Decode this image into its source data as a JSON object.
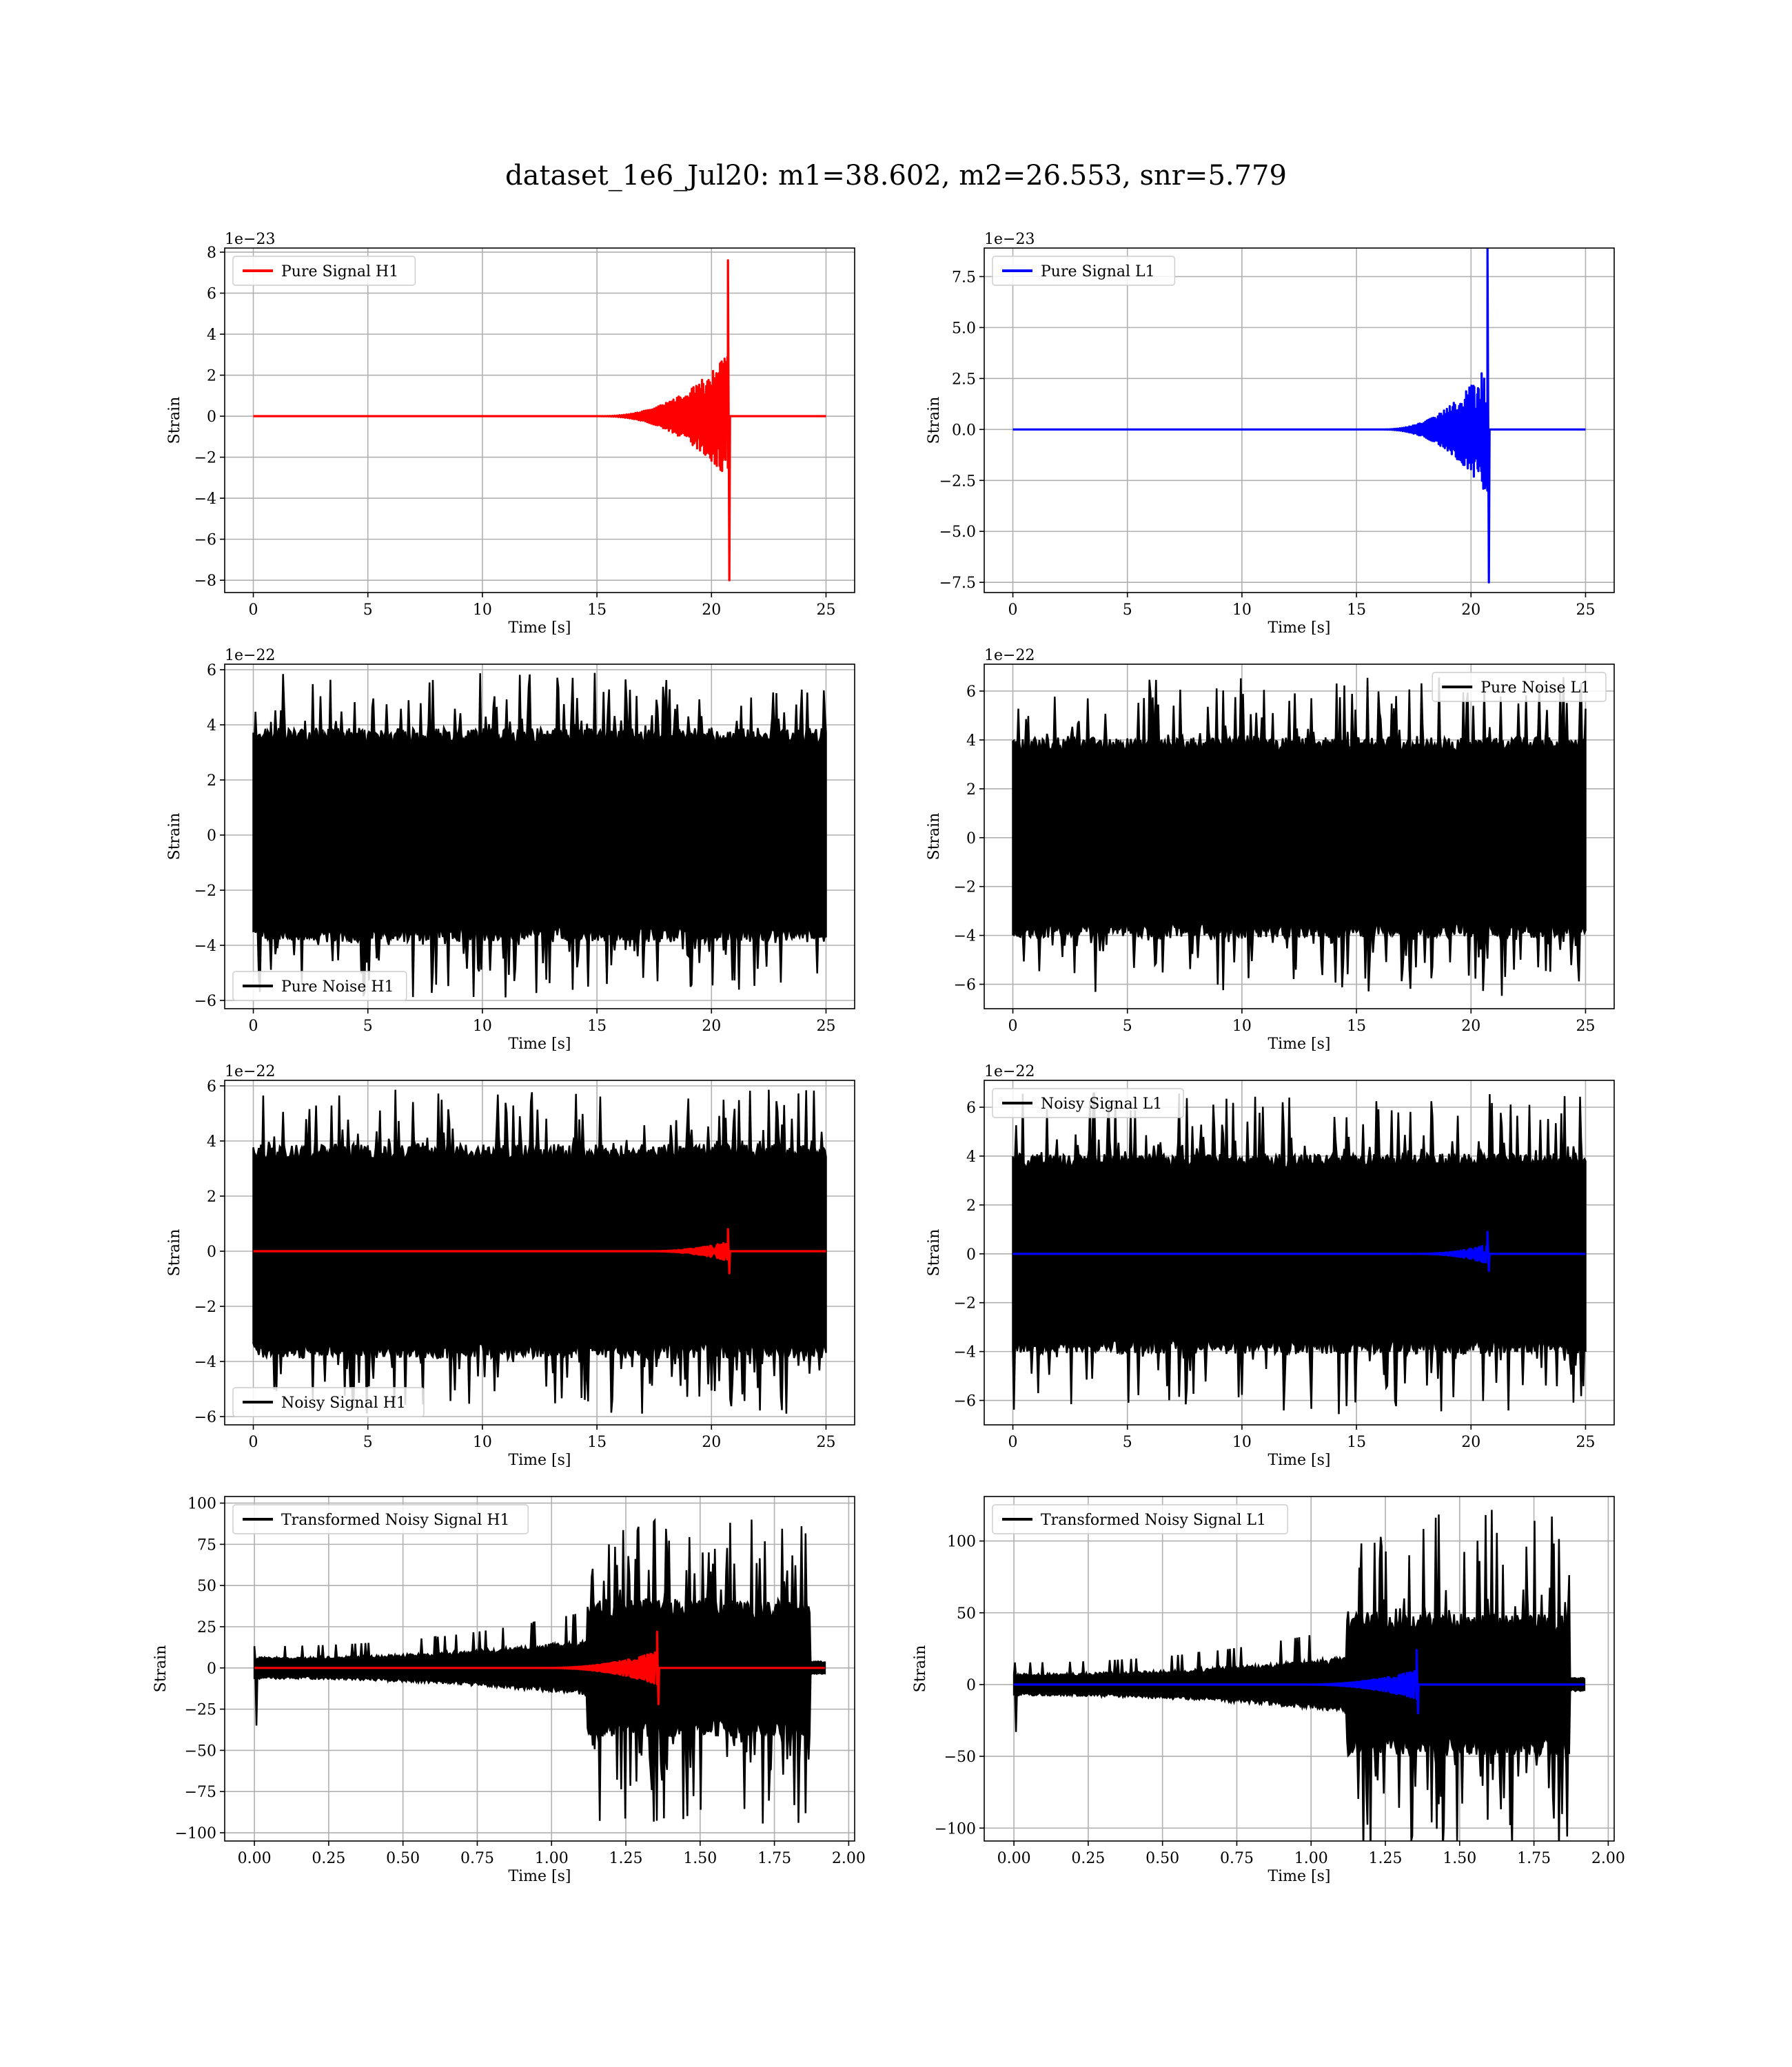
{
  "figure": {
    "suptitle": "dataset_1e6_Jul20: m1=38.602, m2=26.553, snr=5.779"
  },
  "chart_data": [
    {
      "id": "pure-signal-h1",
      "type": "line",
      "xlabel": "Time [s]",
      "ylabel": "Strain",
      "offset_text": "1e−23",
      "xlim": [
        -1.25,
        26.25
      ],
      "ylim": [
        -8.6,
        8.2
      ],
      "xticks": [
        0,
        5,
        10,
        15,
        20,
        25
      ],
      "xtick_labels": [
        "0",
        "5",
        "10",
        "15",
        "20",
        "25"
      ],
      "yticks": [
        -8,
        -6,
        -4,
        -2,
        0,
        2,
        4,
        6,
        8
      ],
      "ytick_labels": [
        "−8",
        "−6",
        "−4",
        "−2",
        "0",
        "2",
        "4",
        "6",
        "8"
      ],
      "grid": true,
      "legend_loc": "upper-left",
      "series": [
        {
          "name": "Pure Signal H1",
          "color": "#ff0000",
          "kind": "chirp",
          "t_start": 0,
          "t_end": 25,
          "t_merge": 20.72,
          "amp_pos": 7.6,
          "amp_neg": -8.0,
          "env_peak": 3.0,
          "onset": 15.0
        }
      ]
    },
    {
      "id": "pure-signal-l1",
      "type": "line",
      "xlabel": "Time [s]",
      "ylabel": "Strain",
      "offset_text": "1e−23",
      "xlim": [
        -1.25,
        26.25
      ],
      "ylim": [
        -8.0,
        8.9
      ],
      "xticks": [
        0,
        5,
        10,
        15,
        20,
        25
      ],
      "xtick_labels": [
        "0",
        "5",
        "10",
        "15",
        "20",
        "25"
      ],
      "yticks": [
        -7.5,
        -5.0,
        -2.5,
        0.0,
        2.5,
        5.0,
        7.5
      ],
      "ytick_labels": [
        "−7.5",
        "−5.0",
        "−2.5",
        "0.0",
        "2.5",
        "5.0",
        "7.5"
      ],
      "grid": true,
      "legend_loc": "upper-left",
      "series": [
        {
          "name": "Pure Signal L1",
          "color": "#0000ff",
          "kind": "chirp",
          "t_start": 0,
          "t_end": 25,
          "t_merge": 20.72,
          "amp_pos": 8.9,
          "amp_neg": -7.5,
          "env_peak": 3.2,
          "onset": 16.0
        }
      ]
    },
    {
      "id": "pure-noise-h1",
      "type": "line",
      "xlabel": "Time [s]",
      "ylabel": "Strain",
      "offset_text": "1e−22",
      "xlim": [
        -1.25,
        26.25
      ],
      "ylim": [
        -6.3,
        6.2
      ],
      "xticks": [
        0,
        5,
        10,
        15,
        20,
        25
      ],
      "xtick_labels": [
        "0",
        "5",
        "10",
        "15",
        "20",
        "25"
      ],
      "yticks": [
        -6,
        -4,
        -2,
        0,
        2,
        4,
        6
      ],
      "ytick_labels": [
        "−6",
        "−4",
        "−2",
        "0",
        "2",
        "4",
        "6"
      ],
      "grid": true,
      "legend_loc": "lower-left",
      "series": [
        {
          "name": "Pure Noise H1",
          "color": "#000000",
          "kind": "noise",
          "t_start": 0,
          "t_end": 25,
          "band": 3.6,
          "spike_max": 5.9
        }
      ]
    },
    {
      "id": "pure-noise-l1",
      "type": "line",
      "xlabel": "Time [s]",
      "ylabel": "Strain",
      "offset_text": "1e−22",
      "xlim": [
        -1.25,
        26.25
      ],
      "ylim": [
        -7.0,
        7.1
      ],
      "xticks": [
        0,
        5,
        10,
        15,
        20,
        25
      ],
      "xtick_labels": [
        "0",
        "5",
        "10",
        "15",
        "20",
        "25"
      ],
      "yticks": [
        -6,
        -4,
        -2,
        0,
        2,
        4,
        6
      ],
      "ytick_labels": [
        "−6",
        "−4",
        "−2",
        "0",
        "2",
        "4",
        "6"
      ],
      "grid": true,
      "legend_loc": "upper-right",
      "series": [
        {
          "name": "Pure Noise L1",
          "color": "#000000",
          "kind": "noise",
          "t_start": 0,
          "t_end": 25,
          "band": 3.8,
          "spike_max": 6.6
        }
      ]
    },
    {
      "id": "noisy-signal-h1",
      "type": "line",
      "xlabel": "Time [s]",
      "ylabel": "Strain",
      "offset_text": "1e−22",
      "xlim": [
        -1.25,
        26.25
      ],
      "ylim": [
        -6.3,
        6.2
      ],
      "xticks": [
        0,
        5,
        10,
        15,
        20,
        25
      ],
      "xtick_labels": [
        "0",
        "5",
        "10",
        "15",
        "20",
        "25"
      ],
      "yticks": [
        -6,
        -4,
        -2,
        0,
        2,
        4,
        6
      ],
      "ytick_labels": [
        "−6",
        "−4",
        "−2",
        "0",
        "2",
        "4",
        "6"
      ],
      "grid": true,
      "legend_loc": "lower-left",
      "series": [
        {
          "name": "Noisy Signal H1",
          "color": "#000000",
          "kind": "noise",
          "t_start": 0,
          "t_end": 25,
          "band": 3.6,
          "spike_max": 5.9
        },
        {
          "name": "",
          "color": "#ff0000",
          "kind": "chirp",
          "t_start": 0,
          "t_end": 25,
          "t_merge": 20.72,
          "amp_pos": 0.8,
          "amp_neg": -0.8,
          "env_peak": 0.35,
          "onset": 17.0
        }
      ]
    },
    {
      "id": "noisy-signal-l1",
      "type": "line",
      "xlabel": "Time [s]",
      "ylabel": "Strain",
      "offset_text": "1e−22",
      "xlim": [
        -1.25,
        26.25
      ],
      "ylim": [
        -7.0,
        7.1
      ],
      "xticks": [
        0,
        5,
        10,
        15,
        20,
        25
      ],
      "xtick_labels": [
        "0",
        "5",
        "10",
        "15",
        "20",
        "25"
      ],
      "yticks": [
        -6,
        -4,
        -2,
        0,
        2,
        4,
        6
      ],
      "ytick_labels": [
        "−6",
        "−4",
        "−2",
        "0",
        "2",
        "4",
        "6"
      ],
      "grid": true,
      "legend_loc": "upper-left",
      "series": [
        {
          "name": "Noisy Signal L1",
          "color": "#000000",
          "kind": "noise",
          "t_start": 0,
          "t_end": 25,
          "band": 3.8,
          "spike_max": 6.6
        },
        {
          "name": "",
          "color": "#0000ff",
          "kind": "chirp",
          "t_start": 0,
          "t_end": 25,
          "t_merge": 20.72,
          "amp_pos": 0.9,
          "amp_neg": -0.7,
          "env_peak": 0.4,
          "onset": 17.5
        }
      ]
    },
    {
      "id": "transformed-noisy-signal-h1",
      "type": "line",
      "xlabel": "Time [s]",
      "ylabel": "Strain",
      "offset_text": "",
      "xlim": [
        -0.1,
        2.02
      ],
      "ylim": [
        -105,
        104
      ],
      "xticks": [
        0,
        0.25,
        0.5,
        0.75,
        1.0,
        1.25,
        1.5,
        1.75,
        2.0
      ],
      "xtick_labels": [
        "0.00",
        "0.25",
        "0.50",
        "0.75",
        "1.00",
        "1.25",
        "1.50",
        "1.75",
        "2.00"
      ],
      "yticks": [
        -100,
        -75,
        -50,
        -25,
        0,
        25,
        50,
        75,
        100
      ],
      "ytick_labels": [
        "−100",
        "−75",
        "−50",
        "−25",
        "0",
        "25",
        "50",
        "75",
        "100"
      ],
      "grid": true,
      "legend_loc": "upper-left",
      "series": [
        {
          "name": "Transformed Noisy Signal H1",
          "color": "#000000",
          "kind": "transformed",
          "t_start": 0,
          "t_end": 1.92,
          "t_step": 1.12,
          "t_cut": 1.87,
          "band_low": 6,
          "band_high": 38,
          "spike_max": 95,
          "start_dip": -35
        },
        {
          "name": "",
          "color": "#ff0000",
          "kind": "chirp",
          "t_start": 0,
          "t_end": 1.92,
          "t_merge": 1.355,
          "amp_pos": 22,
          "amp_neg": -22,
          "env_peak": 10,
          "onset": 0.95
        }
      ]
    },
    {
      "id": "transformed-noisy-signal-l1",
      "type": "line",
      "xlabel": "Time [s]",
      "ylabel": "Strain",
      "offset_text": "",
      "xlim": [
        -0.1,
        2.02
      ],
      "ylim": [
        -109,
        131
      ],
      "xticks": [
        0,
        0.25,
        0.5,
        0.75,
        1.0,
        1.25,
        1.5,
        1.75,
        2.0
      ],
      "xtick_labels": [
        "0.00",
        "0.25",
        "0.50",
        "0.75",
        "1.00",
        "1.25",
        "1.50",
        "1.75",
        "2.00"
      ],
      "yticks": [
        -100,
        -50,
        0,
        50,
        100
      ],
      "ytick_labels": [
        "−100",
        "−50",
        "0",
        "50",
        "100"
      ],
      "grid": true,
      "legend_loc": "upper-left",
      "series": [
        {
          "name": "Transformed Noisy Signal L1",
          "color": "#000000",
          "kind": "transformed",
          "t_start": 0,
          "t_end": 1.92,
          "t_step": 1.12,
          "t_cut": 1.87,
          "band_low": 7,
          "band_high": 45,
          "spike_max": 122,
          "start_dip": -33
        },
        {
          "name": "",
          "color": "#0000ff",
          "kind": "chirp",
          "t_start": 0,
          "t_end": 1.92,
          "t_merge": 1.355,
          "amp_pos": 24,
          "amp_neg": -20,
          "env_peak": 10,
          "onset": 0.95
        }
      ]
    }
  ]
}
